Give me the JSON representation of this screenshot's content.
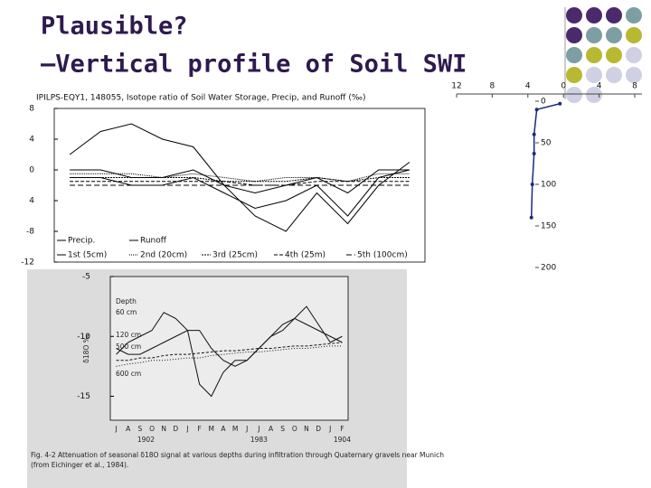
{
  "title": "Plausible?",
  "subtitle": "–Vertical profile of Soil SWI",
  "chart_data": [
    {
      "type": "line",
      "title": "IPILPS-EQY1, 148055, Isotope ratio of Soil Water Storage, Precip, and Runoff (‰)",
      "ylim": [
        -12,
        8
      ],
      "yticks": [
        8,
        4,
        0,
        {
          "value": -4,
          "label": "4"
        },
        -8,
        -12
      ],
      "series": [
        {
          "name": "Precip.",
          "color": "#000",
          "dash": "none",
          "values": [
            2,
            5,
            6,
            4,
            3,
            -2,
            -6,
            -8,
            -3,
            -7,
            -2,
            1
          ]
        },
        {
          "name": "Runoff",
          "color": "#000",
          "dash": "none",
          "values": [
            -1,
            -1,
            -2,
            -2,
            -1,
            -3,
            -5,
            -4,
            -2,
            -6,
            -1,
            0
          ]
        },
        {
          "name": "1st (5cm)",
          "color": "#000",
          "dash": "none",
          "values": [
            0,
            0,
            -1,
            -1,
            0,
            -2,
            -3,
            -2,
            -1,
            -3,
            0,
            0
          ]
        },
        {
          "name": "2nd (20cm)",
          "color": "#000",
          "dash": "1 1",
          "values": [
            -0.5,
            -0.5,
            -0.5,
            -1,
            -0.5,
            -1,
            -1.5,
            -1,
            -1,
            -1.5,
            -0.5,
            -0.5
          ]
        },
        {
          "name": "3rd (25cm)",
          "color": "#000",
          "dash": "2 1",
          "values": [
            -1,
            -1,
            -1,
            -1,
            -1,
            -1.5,
            -1.5,
            -1.5,
            -1,
            -1.5,
            -1,
            -1
          ]
        },
        {
          "name": "4th (25m)",
          "color": "#000",
          "dash": "4 2",
          "values": [
            -1.5,
            -1.5,
            -1.5,
            -1.5,
            -1.5,
            -1.5,
            -2,
            -2,
            -1.5,
            -1.5,
            -1.5,
            -1.5
          ]
        },
        {
          "name": "5th (100cm)",
          "color": "#000",
          "dash": "6 3",
          "values": [
            -2,
            -2,
            -2,
            -2,
            -2,
            -2,
            -2,
            -2,
            -2,
            -2,
            -2,
            -2
          ]
        }
      ]
    },
    {
      "type": "profile",
      "xlim": [
        -12,
        8
      ],
      "xticks": [
        {
          "value": -12,
          "label": "12"
        },
        {
          "value": -8,
          "label": "8"
        },
        {
          "value": -4,
          "label": "4"
        },
        0,
        4,
        8
      ],
      "ylim": [
        0,
        200
      ],
      "yticks": [
        0,
        50,
        100,
        150,
        200
      ],
      "series": [
        {
          "color": "#1a2a7a",
          "x": [
            -0.4,
            -3,
            -3.3,
            -3.3,
            -3.5,
            -3.6
          ],
          "values": [
            3,
            10,
            40,
            63,
            100,
            140
          ]
        }
      ]
    },
    {
      "type": "line",
      "ylim": [
        -17,
        -5
      ],
      "yticks": [
        -5,
        -10,
        -15
      ],
      "ylabel": "δ18O ‰",
      "legend_title": "Depth",
      "categories": [
        "J",
        "A",
        "S",
        "O",
        "N",
        "D",
        "J",
        "F",
        "M",
        "A",
        "M",
        "J",
        "J",
        "A",
        "S",
        "O",
        "N",
        "D",
        "J",
        "F"
      ],
      "years": [
        "1902",
        "1983",
        "1904"
      ],
      "series": [
        {
          "name": "60 cm",
          "color": "#111",
          "dash": "none",
          "values": [
            -11.5,
            -10.5,
            -10,
            -9.5,
            -8,
            -8.5,
            -9.5,
            -14,
            -15,
            -13,
            -12,
            -12,
            -11,
            -10,
            -9.5,
            -8.5,
            -7.5,
            -9,
            -10.5,
            -10
          ]
        },
        {
          "name": "120 cm",
          "color": "#111",
          "dash": "none",
          "values": [
            -11,
            -11.5,
            -11.5,
            -11,
            -10.5,
            -10,
            -9.5,
            -9.5,
            -11,
            -12,
            -12.5,
            -12,
            -11,
            -10,
            -9,
            -8.5,
            -9,
            -9.5,
            -10,
            -10.5
          ]
        },
        {
          "name": "500 cm",
          "color": "#111",
          "dash": "3 2",
          "values": [
            -12,
            -12,
            -11.8,
            -11.8,
            -11.6,
            -11.5,
            -11.5,
            -11.4,
            -11.3,
            -11.2,
            -11.2,
            -11.1,
            -11,
            -11,
            -10.9,
            -10.8,
            -10.8,
            -10.7,
            -10.6,
            -10.5
          ]
        },
        {
          "name": "600 cm",
          "color": "#111",
          "dash": "1 2",
          "values": [
            -12.5,
            -12.3,
            -12.2,
            -12,
            -12,
            -11.9,
            -11.8,
            -11.8,
            -11.6,
            -11.5,
            -11.4,
            -11.3,
            -11.3,
            -11.2,
            -11.1,
            -11,
            -11,
            -10.9,
            -10.8,
            -10.8
          ]
        }
      ],
      "caption": [
        "Fig. 4-2  Attenuation of seasonal δ18O signal at various depths during infiltration through Quaternary gravels near Munich",
        "(from Eichinger et al., 1984)."
      ]
    }
  ]
}
